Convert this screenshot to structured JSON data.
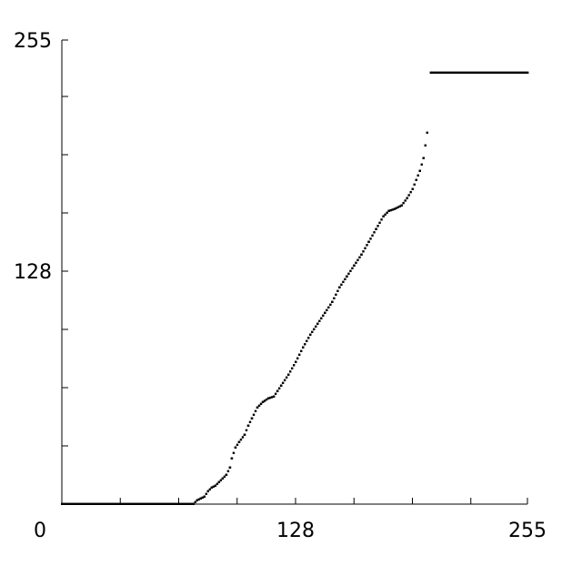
{
  "chart_data": {
    "type": "scatter",
    "title": "",
    "xlabel": "",
    "ylabel": "",
    "xlim": [
      0,
      255
    ],
    "ylim": [
      0,
      255
    ],
    "grid": false,
    "x_ticks": [
      0,
      32,
      64,
      96,
      128,
      160,
      192,
      224,
      255
    ],
    "y_ticks": [
      0,
      32,
      64,
      96,
      128,
      160,
      192,
      224,
      255
    ],
    "x_tick_labels": [
      {
        "value": 0,
        "label": "0"
      },
      {
        "value": 128,
        "label": "128"
      },
      {
        "value": 255,
        "label": "255"
      }
    ],
    "y_tick_labels": [
      {
        "value": 128,
        "label": "128"
      },
      {
        "value": 255,
        "label": "255"
      }
    ],
    "series": [
      {
        "color": "#000000",
        "points": [
          [
            0,
            0
          ],
          [
            72,
            0
          ],
          [
            74,
            2
          ],
          [
            76,
            3
          ],
          [
            78,
            4
          ],
          [
            80,
            7
          ],
          [
            82,
            9
          ],
          [
            84,
            10
          ],
          [
            86,
            12
          ],
          [
            88,
            14
          ],
          [
            90,
            16
          ],
          [
            92,
            20
          ],
          [
            93,
            25
          ],
          [
            95,
            31
          ],
          [
            97,
            34
          ],
          [
            100,
            38
          ],
          [
            102,
            43
          ],
          [
            104,
            47
          ],
          [
            107,
            53
          ],
          [
            110,
            56
          ],
          [
            113,
            58
          ],
          [
            116,
            59
          ],
          [
            118,
            62
          ],
          [
            120,
            65
          ],
          [
            124,
            71
          ],
          [
            128,
            78
          ],
          [
            132,
            86
          ],
          [
            136,
            93
          ],
          [
            140,
            99
          ],
          [
            144,
            105
          ],
          [
            148,
            111
          ],
          [
            152,
            119
          ],
          [
            156,
            125
          ],
          [
            160,
            131
          ],
          [
            164,
            137
          ],
          [
            168,
            144
          ],
          [
            172,
            151
          ],
          [
            176,
            158
          ],
          [
            179,
            161
          ],
          [
            182,
            162
          ],
          [
            186,
            164
          ],
          [
            189,
            168
          ],
          [
            192,
            173
          ],
          [
            194,
            178
          ],
          [
            196,
            183
          ],
          [
            198,
            190
          ],
          [
            200,
            204
          ]
        ]
      },
      {
        "color": "#000000",
        "points": [
          [
            202,
            237
          ],
          [
            255,
            237
          ]
        ]
      }
    ]
  }
}
